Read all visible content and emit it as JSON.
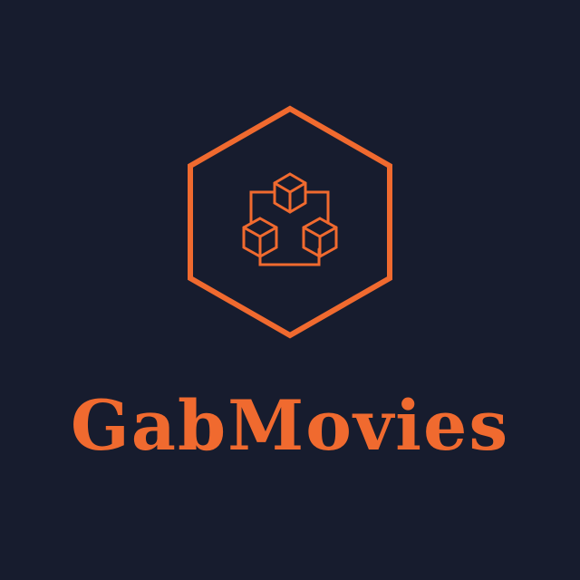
{
  "brand": {
    "name": "GabMovies",
    "accent_color": "#f06a2f",
    "background_color": "#171c2e"
  },
  "logo": {
    "icon": "hexagon-cubes-network-icon"
  }
}
